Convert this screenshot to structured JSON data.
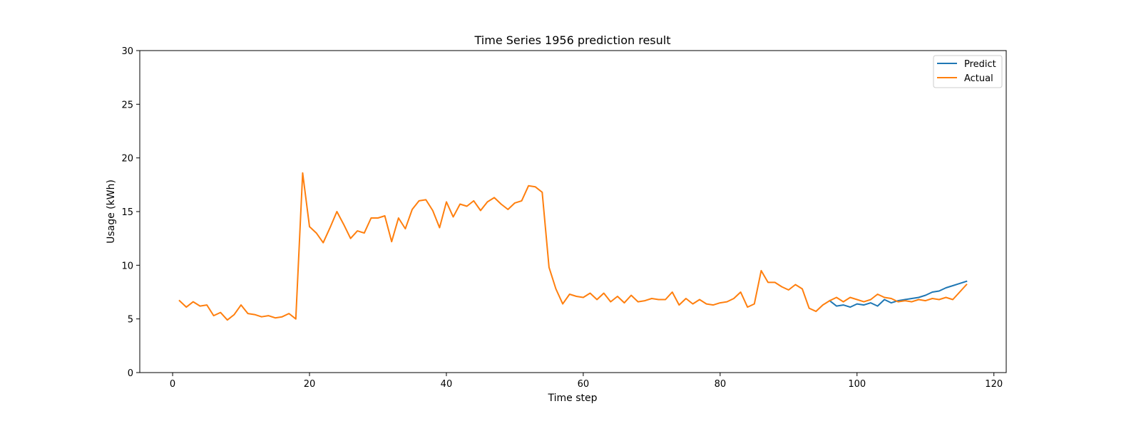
{
  "chart_data": {
    "type": "line",
    "title": "Time Series 1956 prediction result",
    "xlabel": "Time step",
    "ylabel": "Usage (kWh)",
    "xlim": [
      -4.8,
      121.8
    ],
    "ylim": [
      0,
      30
    ],
    "xticks": [
      0,
      20,
      40,
      60,
      80,
      100,
      120
    ],
    "yticks": [
      0,
      5,
      10,
      15,
      20,
      25,
      30
    ],
    "legend_position": "top-right",
    "grid": false,
    "series": [
      {
        "name": "Predict",
        "color": "#1f77b4",
        "x": [
          96,
          97,
          98,
          99,
          100,
          101,
          102,
          103,
          104,
          105,
          106,
          107,
          108,
          109,
          110,
          111,
          112,
          113,
          114,
          115,
          116
        ],
        "y": [
          6.7,
          6.2,
          6.3,
          6.1,
          6.4,
          6.3,
          6.5,
          6.2,
          6.8,
          6.5,
          6.7,
          6.8,
          6.9,
          7.0,
          7.2,
          7.5,
          7.6,
          7.9,
          8.1,
          8.3,
          8.5
        ]
      },
      {
        "name": "Actual",
        "color": "#ff7f0e",
        "x": [
          1,
          2,
          3,
          4,
          5,
          6,
          7,
          8,
          9,
          10,
          11,
          12,
          13,
          14,
          15,
          16,
          17,
          18,
          19,
          20,
          21,
          22,
          23,
          24,
          25,
          26,
          27,
          28,
          29,
          30,
          31,
          32,
          33,
          34,
          35,
          36,
          37,
          38,
          39,
          40,
          41,
          42,
          43,
          44,
          45,
          46,
          47,
          48,
          49,
          50,
          51,
          52,
          53,
          54,
          55,
          56,
          57,
          58,
          59,
          60,
          61,
          62,
          63,
          64,
          65,
          66,
          67,
          68,
          69,
          70,
          71,
          72,
          73,
          74,
          75,
          76,
          77,
          78,
          79,
          80,
          81,
          82,
          83,
          84,
          85,
          86,
          87,
          88,
          89,
          90,
          91,
          92,
          93,
          94,
          95,
          96,
          97,
          98,
          99,
          100,
          101,
          102,
          103,
          104,
          105,
          106,
          107,
          108,
          109,
          110,
          111,
          112,
          113,
          114,
          115,
          116
        ],
        "y": [
          6.7,
          6.1,
          6.6,
          6.2,
          6.3,
          5.3,
          5.6,
          4.9,
          5.4,
          6.3,
          5.5,
          5.4,
          5.2,
          5.3,
          5.1,
          5.2,
          5.5,
          5.0,
          18.6,
          13.6,
          13.0,
          12.1,
          13.5,
          15.0,
          13.8,
          12.5,
          13.2,
          13.0,
          14.4,
          14.4,
          14.6,
          12.2,
          14.4,
          13.4,
          15.2,
          16.0,
          16.1,
          15.1,
          13.5,
          15.9,
          14.5,
          15.7,
          15.5,
          16.0,
          15.1,
          15.9,
          16.3,
          15.7,
          15.2,
          15.8,
          16.0,
          17.4,
          17.3,
          16.8,
          9.8,
          7.8,
          6.4,
          7.3,
          7.1,
          7.0,
          7.4,
          6.8,
          7.4,
          6.6,
          7.1,
          6.5,
          7.2,
          6.6,
          6.7,
          6.9,
          6.8,
          6.8,
          7.5,
          6.3,
          6.9,
          6.4,
          6.8,
          6.4,
          6.3,
          6.5,
          6.6,
          6.9,
          7.5,
          6.1,
          6.4,
          9.5,
          8.4,
          8.4,
          8.0,
          7.7,
          8.2,
          7.8,
          6.0,
          5.7,
          6.3,
          6.7,
          7.0,
          6.6,
          7.0,
          6.8,
          6.6,
          6.8,
          7.3,
          7.0,
          6.9,
          6.6,
          6.7,
          6.6,
          6.8,
          6.7,
          6.9,
          6.8,
          7.0,
          6.8,
          7.5,
          8.2
        ]
      }
    ]
  }
}
